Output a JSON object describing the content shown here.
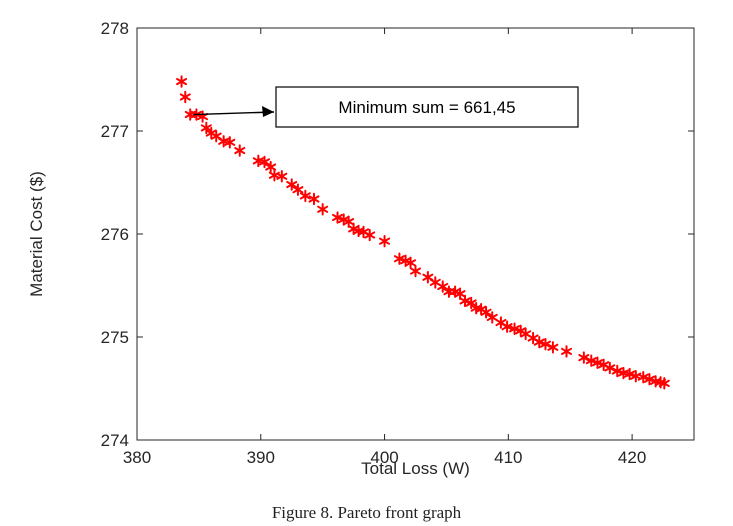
{
  "caption": "Figure 8. Pareto front graph",
  "chart_data": {
    "type": "scatter",
    "title": "",
    "xlabel": "Total Loss (W)",
    "ylabel": "Material Cost ($)",
    "xlim": [
      380,
      425
    ],
    "ylim": [
      274,
      278
    ],
    "xticks": [
      "380",
      "390",
      "400",
      "410",
      "420"
    ],
    "yticks": [
      "274",
      "275",
      "276",
      "277",
      "278"
    ],
    "grid": false,
    "marker": "asterisk",
    "marker_color": "#ff0000",
    "annotation": {
      "text": "Minimum sum = 661,45",
      "point": [
        384.3,
        277.16
      ]
    },
    "series": [
      {
        "name": "",
        "points": [
          [
            383.6,
            277.48
          ],
          [
            383.9,
            277.33
          ],
          [
            384.3,
            277.16
          ],
          [
            384.8,
            277.16
          ],
          [
            385.3,
            277.14
          ],
          [
            385.6,
            277.03
          ],
          [
            386.0,
            276.98
          ],
          [
            386.4,
            276.95
          ],
          [
            387.0,
            276.9
          ],
          [
            387.5,
            276.89
          ],
          [
            388.3,
            276.81
          ],
          [
            389.8,
            276.71
          ],
          [
            390.3,
            276.7
          ],
          [
            390.8,
            276.65
          ],
          [
            391.1,
            276.57
          ],
          [
            391.7,
            276.56
          ],
          [
            392.5,
            276.48
          ],
          [
            393.0,
            276.43
          ],
          [
            393.6,
            276.37
          ],
          [
            394.3,
            276.34
          ],
          [
            395.0,
            276.24
          ],
          [
            396.2,
            276.16
          ],
          [
            396.7,
            276.14
          ],
          [
            397.1,
            276.12
          ],
          [
            397.5,
            276.05
          ],
          [
            397.9,
            276.03
          ],
          [
            398.3,
            276.02
          ],
          [
            398.8,
            275.99
          ],
          [
            400.0,
            275.93
          ],
          [
            401.2,
            275.76
          ],
          [
            401.7,
            275.74
          ],
          [
            402.1,
            275.72
          ],
          [
            402.5,
            275.64
          ],
          [
            403.5,
            275.58
          ],
          [
            404.1,
            275.53
          ],
          [
            404.7,
            275.49
          ],
          [
            405.2,
            275.44
          ],
          [
            405.7,
            275.44
          ],
          [
            406.1,
            275.42
          ],
          [
            406.5,
            275.35
          ],
          [
            407.0,
            275.33
          ],
          [
            407.4,
            275.28
          ],
          [
            407.8,
            275.27
          ],
          [
            408.2,
            275.24
          ],
          [
            408.7,
            275.19
          ],
          [
            409.4,
            275.14
          ],
          [
            409.9,
            275.1
          ],
          [
            410.5,
            275.08
          ],
          [
            411.0,
            275.06
          ],
          [
            411.4,
            275.03
          ],
          [
            412.0,
            274.99
          ],
          [
            412.5,
            274.95
          ],
          [
            413.0,
            274.93
          ],
          [
            413.6,
            274.9
          ],
          [
            414.7,
            274.86
          ],
          [
            416.1,
            274.8
          ],
          [
            416.7,
            274.77
          ],
          [
            417.2,
            274.75
          ],
          [
            417.7,
            274.73
          ],
          [
            418.2,
            274.7
          ],
          [
            418.8,
            274.67
          ],
          [
            419.3,
            274.65
          ],
          [
            419.8,
            274.64
          ],
          [
            420.3,
            274.62
          ],
          [
            420.9,
            274.61
          ],
          [
            421.4,
            274.59
          ],
          [
            421.9,
            274.57
          ],
          [
            422.3,
            274.56
          ],
          [
            422.6,
            274.55
          ]
        ]
      }
    ]
  }
}
